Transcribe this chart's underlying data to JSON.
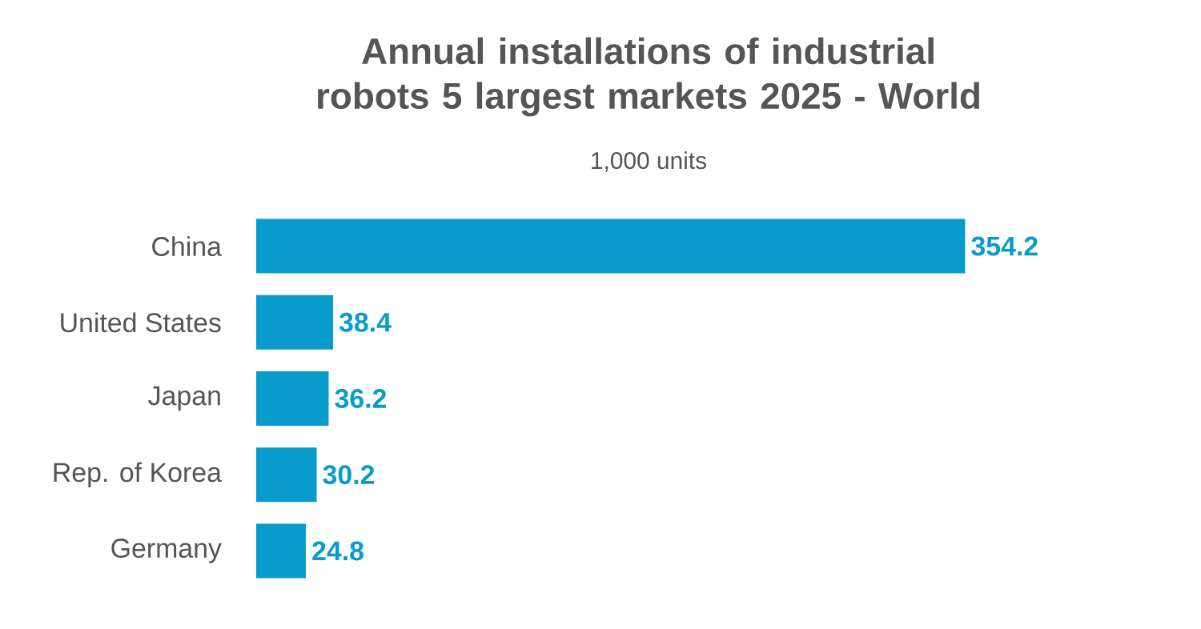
{
  "chart_data": {
    "type": "bar",
    "orientation": "horizontal",
    "title": "Annual installations of industrial robots 5 largest markets 2025 - World",
    "subtitle": "1,000 units",
    "categories": [
      "China",
      "United States",
      "Japan",
      "Rep. of Korea",
      "Germany"
    ],
    "values": [
      354.2,
      38.4,
      36.2,
      30.2,
      24.8
    ],
    "color": "#0a9bcd",
    "data_labels": true
  }
}
